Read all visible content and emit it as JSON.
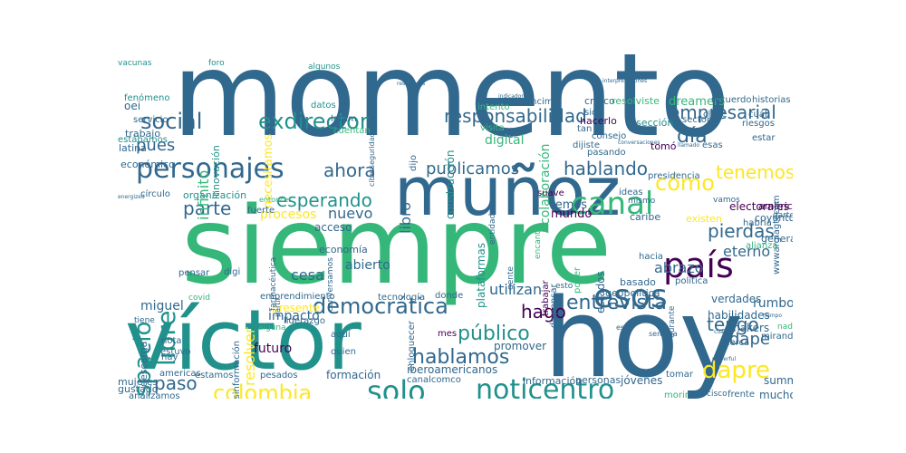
{
  "palette": {
    "viridis_dark": "#440154",
    "viridis_blue": "#31688e",
    "viridis_teal": "#21918c",
    "viridis_green": "#35b779",
    "viridis_yellow": "#fde725"
  },
  "words": [
    {
      "t": "momento",
      "c": "#31688e"
    },
    {
      "t": "siempre",
      "c": "#35b779"
    },
    {
      "t": "víctor",
      "c": "#21918c"
    },
    {
      "t": "hoy",
      "c": "#31688e"
    },
    {
      "t": "muñoz",
      "c": "#31688e"
    },
    {
      "t": "personajes",
      "c": "#31688e"
    },
    {
      "t": "canal",
      "c": "#35b779"
    },
    {
      "t": "noticentro",
      "c": "#21918c"
    },
    {
      "t": "solo",
      "c": "#21918c"
    },
    {
      "t": "país",
      "c": "#440154"
    },
    {
      "t": "esos",
      "c": "#31688e"
    },
    {
      "t": "libre",
      "c": "#21918c"
    },
    {
      "t": "espacio",
      "c": "#21918c"
    },
    {
      "t": "social",
      "c": "#31688e"
    },
    {
      "t": "exdirector",
      "c": "#21918c"
    },
    {
      "t": "responsabilidad",
      "c": "#31688e"
    },
    {
      "t": "empresarial",
      "c": "#31688e"
    },
    {
      "t": "colombia",
      "c": "#fde725"
    },
    {
      "t": "dapre",
      "c": "#fde725"
    },
    {
      "t": "democrática",
      "c": "#31688e"
    },
    {
      "t": "hablamos",
      "c": "#31688e"
    },
    {
      "t": "público",
      "c": "#21918c"
    },
    {
      "t": "entrevista",
      "c": "#31688e"
    },
    {
      "t": "esperando",
      "c": "#21918c"
    },
    {
      "t": "ahora",
      "c": "#31688e"
    },
    {
      "t": "cómo",
      "c": "#fde725"
    },
    {
      "t": "hablando",
      "c": "#31688e"
    },
    {
      "t": "parte",
      "c": "#31688e"
    },
    {
      "t": "tenemos",
      "c": "#fde725"
    },
    {
      "t": "pierdas",
      "c": "#31688e"
    },
    {
      "t": "resolver",
      "c": "#fde725"
    },
    {
      "t": "tengo",
      "c": "#31688e"
    },
    {
      "t": "hago",
      "c": "#440154"
    },
    {
      "t": "paso",
      "c": "#31688e"
    },
    {
      "t": "pues",
      "c": "#31688e"
    },
    {
      "t": "día",
      "c": "#31688e"
    },
    {
      "t": "dape",
      "c": "#31688e"
    },
    {
      "t": "publicamos",
      "c": "#31688e"
    },
    {
      "t": "libro",
      "c": "#31688e"
    },
    {
      "t": "infinito",
      "c": "#35b779"
    },
    {
      "t": "abrazo",
      "c": "#31688e"
    },
    {
      "t": "nuevo",
      "c": "#31688e"
    },
    {
      "t": "necesitamos",
      "c": "#fde725"
    },
    {
      "t": "colaboración",
      "c": "#35b779"
    },
    {
      "t": "innovación",
      "c": "#21918c"
    },
    {
      "t": "construcción",
      "c": "#21918c"
    },
    {
      "t": "digital",
      "c": "#35b779"
    },
    {
      "t": "dreamers",
      "c": "#35b779"
    },
    {
      "t": "eterno",
      "c": "#31688e"
    },
    {
      "t": "utilizan",
      "c": "#31688e"
    },
    {
      "t": "miguel",
      "c": "#31688e"
    },
    {
      "t": "futuro",
      "c": "#440154"
    },
    {
      "t": "procesos",
      "c": "#fde725"
    },
    {
      "t": "acceso",
      "c": "#31688e"
    },
    {
      "t": "abierto",
      "c": "#31688e"
    },
    {
      "t": "cesa",
      "c": "#31688e"
    },
    {
      "t": "rumbo",
      "c": "#31688e"
    },
    {
      "t": "plataformas",
      "c": "#21918c"
    },
    {
      "t": "impacto",
      "c": "#31688e"
    },
    {
      "t": "formación",
      "c": "#31688e"
    },
    {
      "t": "iberoamericanos",
      "c": "#31688e"
    },
    {
      "t": "promover",
      "c": "#31688e"
    },
    {
      "t": "jóvenes",
      "c": "#31688e"
    },
    {
      "t": "verdades",
      "c": "#31688e"
    },
    {
      "t": "habilidades",
      "c": "#31688e"
    },
    {
      "t": "makers",
      "c": "#31688e"
    },
    {
      "t": "summit",
      "c": "#31688e"
    },
    {
      "t": "mucho",
      "c": "#31688e"
    },
    {
      "t": "mundo",
      "c": "#440154"
    },
    {
      "t": "vemos",
      "c": "#31688e"
    },
    {
      "t": "tomó",
      "c": "#440154"
    },
    {
      "t": "organización",
      "c": "#21918c"
    },
    {
      "t": "económico",
      "c": "#31688e"
    },
    {
      "t": "latina",
      "c": "#31688e"
    },
    {
      "t": "servicio",
      "c": "#31688e"
    },
    {
      "t": "fenómeno",
      "c": "#21918c"
    },
    {
      "t": "oei",
      "c": "#31688e"
    },
    {
      "t": "vacunas",
      "c": "#21918c"
    },
    {
      "t": "foro",
      "c": "#21918c"
    },
    {
      "t": "trabajo",
      "c": "#31688e"
    },
    {
      "t": "estábamos",
      "c": "#21918c"
    },
    {
      "t": "datos",
      "c": "#21918c"
    },
    {
      "t": "algunos",
      "c": "#21918c"
    },
    {
      "t": "latam",
      "c": "#31688e"
    },
    {
      "t": "cuentan",
      "c": "#35b779"
    },
    {
      "t": "ciberseguridad",
      "c": "#31688e"
    },
    {
      "t": "dijo",
      "c": "#31688e"
    },
    {
      "t": "visita",
      "c": "#35b779"
    },
    {
      "t": "intento",
      "c": "#35b779"
    },
    {
      "t": "encima",
      "c": "#31688e"
    },
    {
      "t": "crítico",
      "c": "#31688e"
    },
    {
      "t": "sido",
      "c": "#31688e"
    },
    {
      "t": "hacerlo",
      "c": "#440154"
    },
    {
      "t": "sección",
      "c": "#21918c"
    },
    {
      "t": "tan",
      "c": "#31688e"
    },
    {
      "t": "consejo",
      "c": "#31688e"
    },
    {
      "t": "dijiste",
      "c": "#31688e"
    },
    {
      "t": "pasando",
      "c": "#31688e"
    },
    {
      "t": "resolviste",
      "c": "#35b779"
    },
    {
      "t": "recuerdo",
      "c": "#31688e"
    },
    {
      "t": "historias",
      "c": "#31688e"
    },
    {
      "t": "clave",
      "c": "#31688e"
    },
    {
      "t": "sectores",
      "c": "#31688e"
    },
    {
      "t": "riesgos",
      "c": "#31688e"
    },
    {
      "t": "cuál",
      "c": "#31688e"
    },
    {
      "t": "estar",
      "c": "#31688e"
    },
    {
      "t": "esas",
      "c": "#31688e"
    },
    {
      "t": "presidencia",
      "c": "#31688e"
    },
    {
      "t": "electorales",
      "c": "#440154"
    },
    {
      "t": "coyuntura",
      "c": "#31688e"
    },
    {
      "t": "américa",
      "c": "#440154"
    },
    {
      "t": "generar",
      "c": "#31688e"
    },
    {
      "t": "darte",
      "c": "#31688e"
    },
    {
      "t": "habría",
      "c": "#31688e"
    },
    {
      "t": "alianza",
      "c": "#35b779"
    },
    {
      "t": "existen",
      "c": "#fde725"
    },
    {
      "t": "caribe",
      "c": "#31688e"
    },
    {
      "t": "ideas",
      "c": "#31688e"
    },
    {
      "t": "mismo",
      "c": "#31688e"
    },
    {
      "t": "suave",
      "c": "#440154"
    },
    {
      "t": "entidades",
      "c": "#31688e"
    },
    {
      "t": "encanta",
      "c": "#35b779"
    },
    {
      "t": "gente",
      "c": "#31688e"
    },
    {
      "t": "trabajar",
      "c": "#440154"
    },
    {
      "t": "dispensar",
      "c": "#31688e"
    },
    {
      "t": "poder",
      "c": "#35b779"
    },
    {
      "t": "estados",
      "c": "#31688e"
    },
    {
      "t": "hacia",
      "c": "#31688e"
    },
    {
      "t": "basado",
      "c": "#31688e"
    },
    {
      "t": "geopolítica",
      "c": "#31688e"
    },
    {
      "t": "política",
      "c": "#31688e"
    },
    {
      "t": "durante",
      "c": "#31688e"
    },
    {
      "t": "tecnología",
      "c": "#31688e"
    },
    {
      "t": "donde",
      "c": "#31688e"
    },
    {
      "t": "emprendimiento",
      "c": "#31688e"
    },
    {
      "t": "presente",
      "c": "#fde725"
    },
    {
      "t": "desinformación",
      "c": "#31688e"
    },
    {
      "t": "economía",
      "c": "#31688e"
    },
    {
      "t": "conversamos",
      "c": "#31688e"
    },
    {
      "t": "enloquecer",
      "c": "#31688e"
    },
    {
      "t": "mes",
      "c": "#440154"
    },
    {
      "t": "canalcomco",
      "c": "#31688e"
    },
    {
      "t": "información",
      "c": "#31688e"
    },
    {
      "t": "personas",
      "c": "#31688e"
    },
    {
      "t": "tomar",
      "c": "#31688e"
    },
    {
      "t": "morir",
      "c": "#35b779"
    },
    {
      "t": "frente",
      "c": "#31688e"
    },
    {
      "t": "cisco",
      "c": "#31688e"
    },
    {
      "t": "cerca",
      "c": "#31688e"
    },
    {
      "t": "mujeres",
      "c": "#31688e"
    },
    {
      "t": "gustado",
      "c": "#31688e"
    },
    {
      "t": "analizamos",
      "c": "#31688e"
    },
    {
      "t": "americas",
      "c": "#31688e"
    },
    {
      "t": "estamos",
      "c": "#31688e"
    },
    {
      "t": "pesados",
      "c": "#31688e"
    },
    {
      "t": "nota",
      "c": "#31688e"
    },
    {
      "t": "hay",
      "c": "#31688e"
    },
    {
      "t": "estuvo",
      "c": "#31688e"
    },
    {
      "t": "quien",
      "c": "#31688e"
    },
    {
      "t": "aquí",
      "c": "#31688e"
    },
    {
      "t": "liderazgo",
      "c": "#31688e"
    },
    {
      "t": "descarga",
      "c": "#31688e"
    },
    {
      "t": "pensar",
      "c": "#31688e"
    },
    {
      "t": "digi",
      "c": "#31688e"
    },
    {
      "t": "fuerte",
      "c": "#31688e"
    },
    {
      "t": "círculo",
      "c": "#31688e"
    },
    {
      "t": "wwwargiagtecom",
      "c": "#31688e"
    },
    {
      "t": "farmacéutica",
      "c": "#31688e"
    },
    {
      "t": "partir",
      "c": "#31688e"
    },
    {
      "t": "covid",
      "c": "#35b779"
    },
    {
      "t": "tiene",
      "c": "#31688e"
    },
    {
      "t": "alguna",
      "c": "#35b779"
    },
    {
      "t": "nadie",
      "c": "#35b779"
    },
    {
      "t": "semana",
      "c": "#31688e"
    },
    {
      "t": "mirando",
      "c": "#31688e"
    },
    {
      "t": "esto",
      "c": "#31688e"
    },
    {
      "t": "vamos",
      "c": "#31688e"
    },
    {
      "t": "ese",
      "c": "#31688e"
    },
    {
      "t": "entonces",
      "c": "#35b779"
    },
    {
      "t": "resultados",
      "c": "#31688e"
    },
    {
      "t": "indicadores",
      "c": "#31688e"
    },
    {
      "t": "interpretaciones",
      "c": "#31688e"
    },
    {
      "t": "conversaciones",
      "c": "#31688e"
    },
    {
      "t": "llamado",
      "c": "#31688e"
    },
    {
      "t": "tiempo",
      "c": "#31688e"
    },
    {
      "t": "powerful",
      "c": "#31688e"
    },
    {
      "t": "cuales",
      "c": "#31688e"
    },
    {
      "t": "energized",
      "c": "#31688e"
    }
  ]
}
